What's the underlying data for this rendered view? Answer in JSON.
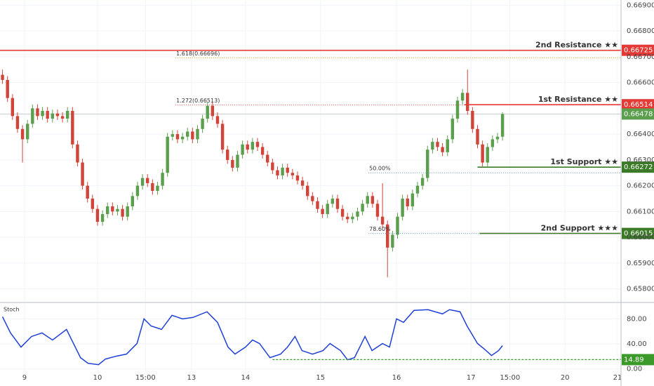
{
  "chart_data": [
    {
      "type": "candlestick",
      "up_color": "#5b9f4e",
      "down_color": "#d0453a",
      "ylim": [
        0.6575,
        0.6692
      ],
      "yticks": [
        {
          "value": 0.658,
          "label": "0.65800"
        },
        {
          "value": 0.659,
          "label": "0.65900"
        },
        {
          "value": 0.66,
          "label": "0.66000"
        },
        {
          "value": 0.661,
          "label": "0.66100"
        },
        {
          "value": 0.662,
          "label": "0.66200"
        },
        {
          "value": 0.663,
          "label": "0.66300"
        },
        {
          "value": 0.664,
          "label": "0.66400"
        },
        {
          "value": 0.666,
          "label": "0.66600"
        },
        {
          "value": 0.667,
          "label": "0.66700"
        },
        {
          "value": 0.668,
          "label": "0.66800"
        },
        {
          "value": 0.669,
          "label": "0.66900"
        }
      ],
      "grid": true,
      "open": [
        0.6663,
        0.6661,
        0.6654,
        0.6647,
        0.6642,
        0.6638,
        0.6644,
        0.665,
        0.6647,
        0.6649,
        0.6646,
        0.6648,
        0.6647,
        0.6646,
        0.6649,
        0.6636,
        0.6629,
        0.662,
        0.6615,
        0.6611,
        0.6606,
        0.6609,
        0.6612,
        0.661,
        0.6611,
        0.6608,
        0.6612,
        0.6616,
        0.662,
        0.6623,
        0.6621,
        0.6618,
        0.662,
        0.6625,
        0.6639,
        0.664,
        0.6638,
        0.6639,
        0.6641,
        0.6638,
        0.6642,
        0.6646,
        0.6651,
        0.6647,
        0.6644,
        0.6634,
        0.663,
        0.6627,
        0.6632,
        0.6636,
        0.6634,
        0.6637,
        0.6635,
        0.6632,
        0.6629,
        0.6626,
        0.6624,
        0.6627,
        0.6625,
        0.6624,
        0.6622,
        0.662,
        0.6616,
        0.6614,
        0.6611,
        0.6609,
        0.6613,
        0.6615,
        0.6611,
        0.6608,
        0.6607,
        0.6608,
        0.661,
        0.6613,
        0.6616,
        0.6613,
        0.6608,
        0.6605,
        0.6596,
        0.6601,
        0.6608,
        0.6615,
        0.6612,
        0.6617,
        0.662,
        0.6623,
        0.6634,
        0.6637,
        0.6635,
        0.6633,
        0.6638,
        0.6646,
        0.6653,
        0.6656,
        0.6649,
        0.6642,
        0.6636,
        0.6629,
        0.6635,
        0.6638,
        0.6639
      ],
      "high": [
        0.6665,
        0.66625,
        0.66555,
        0.66485,
        0.66435,
        0.66455,
        0.66515,
        0.66515,
        0.66505,
        0.66505,
        0.66495,
        0.66495,
        0.66485,
        0.66505,
        0.66505,
        0.66375,
        0.66305,
        0.66215,
        0.66165,
        0.66125,
        0.66105,
        0.66135,
        0.66135,
        0.66125,
        0.66125,
        0.66135,
        0.66175,
        0.66215,
        0.66245,
        0.66245,
        0.66225,
        0.66215,
        0.66265,
        0.66405,
        0.66415,
        0.66415,
        0.66405,
        0.66425,
        0.66425,
        0.66435,
        0.66475,
        0.66525,
        0.66525,
        0.66485,
        0.66455,
        0.66355,
        0.66315,
        0.66335,
        0.66375,
        0.66375,
        0.66385,
        0.66385,
        0.66365,
        0.66335,
        0.66305,
        0.66275,
        0.66285,
        0.66285,
        0.66265,
        0.66255,
        0.66235,
        0.66215,
        0.66175,
        0.66155,
        0.66125,
        0.66145,
        0.66165,
        0.66165,
        0.66125,
        0.66095,
        0.66095,
        0.66115,
        0.66145,
        0.66175,
        0.66175,
        0.66145,
        0.6621,
        0.66065,
        0.66025,
        0.66095,
        0.66165,
        0.66165,
        0.66185,
        0.66215,
        0.66245,
        0.66355,
        0.66385,
        0.66385,
        0.66365,
        0.66395,
        0.66475,
        0.66545,
        0.66575,
        0.6665,
        0.66505,
        0.66435,
        0.66375,
        0.66365,
        0.66395,
        0.66405,
        0.66485
      ],
      "low": [
        0.66595,
        0.66525,
        0.66455,
        0.66405,
        0.6629,
        0.66365,
        0.66425,
        0.66455,
        0.66455,
        0.66445,
        0.66445,
        0.66455,
        0.66445,
        0.66445,
        0.66345,
        0.66275,
        0.66185,
        0.66135,
        0.66095,
        0.66045,
        0.66045,
        0.66075,
        0.66085,
        0.66085,
        0.66065,
        0.66065,
        0.66105,
        0.66145,
        0.66185,
        0.66195,
        0.66165,
        0.66165,
        0.66185,
        0.66235,
        0.66375,
        0.66365,
        0.66365,
        0.66375,
        0.66365,
        0.66365,
        0.66405,
        0.66445,
        0.66455,
        0.66425,
        0.66325,
        0.66285,
        0.66255,
        0.66255,
        0.66305,
        0.66325,
        0.66325,
        0.66335,
        0.66305,
        0.66275,
        0.66245,
        0.66225,
        0.66225,
        0.66235,
        0.66225,
        0.66205,
        0.66185,
        0.66145,
        0.66125,
        0.66095,
        0.66075,
        0.66075,
        0.66115,
        0.66095,
        0.66065,
        0.66055,
        0.66055,
        0.66065,
        0.66085,
        0.66115,
        0.66115,
        0.66065,
        0.66035,
        0.65845,
        0.65945,
        0.65995,
        0.66065,
        0.66105,
        0.66105,
        0.66155,
        0.66185,
        0.66215,
        0.66325,
        0.66335,
        0.66315,
        0.66315,
        0.66365,
        0.66445,
        0.66515,
        0.66475,
        0.66405,
        0.66345,
        0.66275,
        0.66275,
        0.66335,
        0.66365,
        0.66375
      ],
      "close": [
        0.6661,
        0.6654,
        0.6647,
        0.6642,
        0.6638,
        0.6644,
        0.665,
        0.6647,
        0.6649,
        0.6646,
        0.6648,
        0.6647,
        0.6646,
        0.6649,
        0.6636,
        0.6629,
        0.662,
        0.6615,
        0.6611,
        0.6606,
        0.6609,
        0.6612,
        0.661,
        0.6611,
        0.6608,
        0.6612,
        0.6616,
        0.662,
        0.6623,
        0.6621,
        0.6618,
        0.662,
        0.6625,
        0.6639,
        0.664,
        0.6638,
        0.6639,
        0.6641,
        0.6638,
        0.6642,
        0.6646,
        0.6651,
        0.6647,
        0.6644,
        0.6634,
        0.663,
        0.6627,
        0.6632,
        0.6636,
        0.6634,
        0.6637,
        0.6635,
        0.6632,
        0.6629,
        0.6626,
        0.6624,
        0.6627,
        0.6625,
        0.6624,
        0.6622,
        0.662,
        0.6616,
        0.6614,
        0.6611,
        0.6609,
        0.6613,
        0.6615,
        0.6611,
        0.6608,
        0.6607,
        0.6608,
        0.661,
        0.6613,
        0.6616,
        0.6613,
        0.6608,
        0.6605,
        0.6596,
        0.6601,
        0.6608,
        0.6615,
        0.6612,
        0.6617,
        0.662,
        0.6623,
        0.6634,
        0.6637,
        0.6635,
        0.6633,
        0.6638,
        0.6646,
        0.6653,
        0.6656,
        0.6649,
        0.6642,
        0.6636,
        0.6629,
        0.6635,
        0.6638,
        0.6639,
        0.66478
      ],
      "levels": [
        {
          "label": "2nd Resistance ★★",
          "value": 0.66725,
          "color": "#e53935",
          "x_from": -0.5
        },
        {
          "label": "1st Resistance ★★",
          "value": 0.66514,
          "color": "#e53935",
          "x_from": 92.4
        },
        {
          "label": "1st Support ★★",
          "value": 0.66272,
          "color": "#3b7a26",
          "x_from": 95
        },
        {
          "label": "2nd Support ★★★",
          "value": 0.66015,
          "color": "#3b7a26",
          "x_from": 95.4
        }
      ],
      "fib_levels": [
        {
          "label": "1.618(0.66696)",
          "value": 0.66696,
          "color": "#d9a02a",
          "x_from": 34.6
        },
        {
          "label": "1.272(0.66513)",
          "value": 0.66513,
          "color": "#e05050",
          "x_from": 34.6,
          "x_to": 92.4
        },
        {
          "label": "50.00%",
          "value": 0.6625,
          "color": "#5b8fc9",
          "x_from": 73.2
        },
        {
          "label": "78.60%",
          "value": 0.66015,
          "color": "#5b8fc9",
          "x_from": 73.2,
          "x_to": 95.4
        }
      ],
      "last_price": {
        "value": 0.66478,
        "color": "#5b9f4e"
      }
    },
    {
      "type": "line",
      "title": "Stoch",
      "xlim": [
        -0.5,
        123.7
      ],
      "xticks": [
        {
          "value": 4.4,
          "label": "9"
        },
        {
          "value": 19,
          "label": "10"
        },
        {
          "value": 28.6,
          "label": "15:00"
        },
        {
          "value": 37.8,
          "label": "13"
        },
        {
          "value": 48.6,
          "label": "14"
        },
        {
          "value": 63.6,
          "label": "15"
        },
        {
          "value": 78.8,
          "label": "16"
        },
        {
          "value": 93.7,
          "label": "17"
        },
        {
          "value": 101.5,
          "label": "15:00"
        },
        {
          "value": 112.5,
          "label": "20"
        },
        {
          "value": 123,
          "label": "21"
        }
      ],
      "ylim": [
        -25,
        105
      ],
      "yticks": [
        {
          "value": 0,
          "label": "0.00"
        },
        {
          "value": 40,
          "label": "40.00"
        },
        {
          "value": 80,
          "label": "80.00"
        }
      ],
      "grid": true,
      "x": [
        0,
        1.6,
        3.7,
        5.8,
        7.9,
        10,
        12.8,
        13.5,
        15.6,
        17.1,
        19.2,
        20.6,
        22.7,
        24.8,
        26.9,
        28.3,
        29.7,
        31.8,
        33.9,
        36,
        38.1,
        40.9,
        43,
        45.1,
        46.5,
        48.6,
        50,
        51.4,
        53.5,
        55.6,
        57,
        58.5,
        59.9,
        62,
        64.1,
        65.5,
        67.6,
        69,
        70.4,
        72.5,
        73.9,
        76,
        77.4,
        78.8,
        80.2,
        82.3,
        85.1,
        88,
        89.4,
        91.5,
        92.9,
        95,
        96.4,
        97.8,
        99.2,
        100
      ],
      "series": [
        {
          "color": "#1f3fd6",
          "values": [
            83.4,
            57.5,
            34.9,
            51.8,
            57.5,
            46.2,
            63.1,
            51.8,
            18,
            9,
            6.8,
            15.8,
            20.3,
            23.7,
            40.6,
            80,
            68.7,
            63.1,
            85.6,
            80,
            82.3,
            91.3,
            74.4,
            34.9,
            23.7,
            34.9,
            46.2,
            40.6,
            18,
            23.7,
            34.9,
            51.8,
            29.3,
            23.7,
            29.3,
            40.6,
            29.3,
            14.6,
            18,
            51.8,
            29.3,
            40.6,
            34.9,
            80,
            74.4,
            93.5,
            94.6,
            87.9,
            94.6,
            91.3,
            68.7,
            40.6,
            31.5,
            21.4,
            29.3,
            37.2
          ]
        }
      ],
      "level": {
        "value": 14.89,
        "color": "#3b9a2a",
        "x_from": 54
      }
    }
  ]
}
